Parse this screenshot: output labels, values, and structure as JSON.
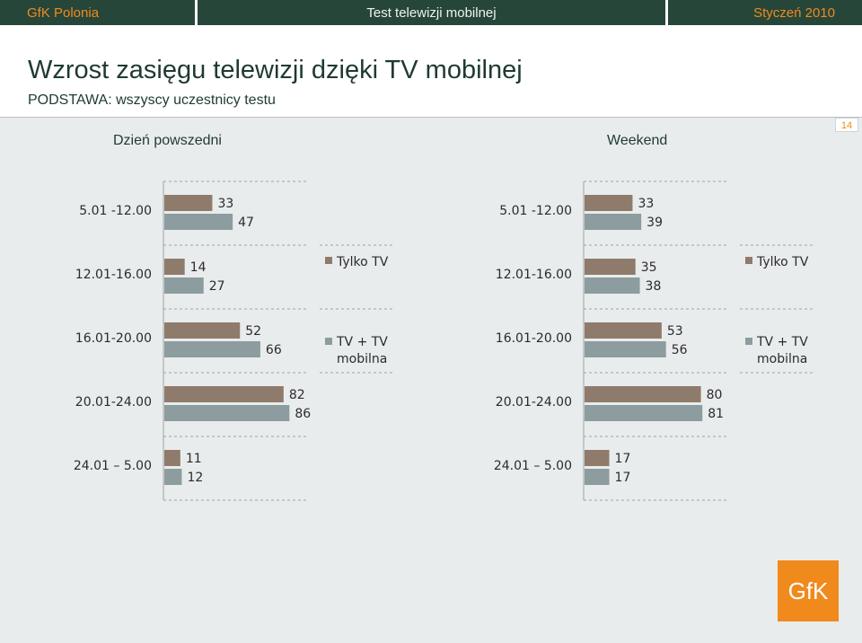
{
  "topbar": {
    "left": "GfK Polonia",
    "center": "Test telewizji mobilnej",
    "right": "Styczeń 2010"
  },
  "header": {
    "title": "Wzrost zasięgu telewizji dzięki TV mobilnej",
    "subtitle": "PODSTAWA: wszyscy uczestnicy testu",
    "page_number": "14"
  },
  "colors": {
    "tylko_tv": "#8f7b6c",
    "tv_mobilna": "#8c9c9f",
    "accent": "#f08a1c",
    "dark": "#27463a"
  },
  "chart_data": [
    {
      "type": "bar",
      "orientation": "horizontal",
      "title": "Dzień powszedni",
      "categories": [
        "5.01 -12.00",
        "12.01-16.00",
        "16.01-20.00",
        "20.01-24.00",
        "24.01 – 5.00"
      ],
      "series": [
        {
          "name": "Tylko TV",
          "values": [
            33,
            14,
            52,
            82,
            11
          ]
        },
        {
          "name": "TV + TV mobilna",
          "values": [
            47,
            27,
            66,
            86,
            12
          ]
        }
      ],
      "xlim": [
        0,
        100
      ],
      "legend": "right"
    },
    {
      "type": "bar",
      "orientation": "horizontal",
      "title": "Weekend",
      "categories": [
        "5.01 -12.00",
        "12.01-16.00",
        "16.01-20.00",
        "20.01-24.00",
        "24.01 – 5.00"
      ],
      "series": [
        {
          "name": "Tylko TV",
          "values": [
            33,
            35,
            53,
            80,
            17
          ]
        },
        {
          "name": "TV + TV mobilna",
          "values": [
            39,
            38,
            56,
            81,
            17
          ]
        }
      ],
      "xlim": [
        0,
        100
      ],
      "legend": "right"
    }
  ],
  "legend": {
    "item1": "Tylko TV",
    "item2_line1": "TV + TV",
    "item2_line2": "mobilna"
  },
  "logo_text": "GfK"
}
